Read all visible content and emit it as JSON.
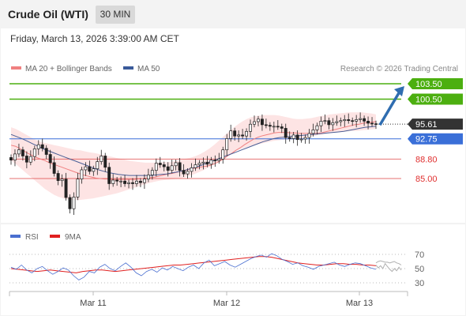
{
  "header": {
    "instrument": "Crude Oil (WTI)",
    "timeframe": "30 MIN",
    "timestamp": "Friday, March 13, 2026 3:39:00 AM CET"
  },
  "chart_data": [
    {
      "type": "candlestick",
      "legend": [
        {
          "label": "MA 20 + Bollinger Bands",
          "color": "#f08080"
        },
        {
          "label": "MA 50",
          "color": "#3a5a9a"
        }
      ],
      "credit": "Research © 2026 Trading Central",
      "last_price": "95.61",
      "levels": [
        {
          "label": "103.50",
          "value": 103.5,
          "role": "resistance",
          "color": "#4caf10"
        },
        {
          "label": "100.50",
          "value": 100.5,
          "role": "resistance",
          "color": "#4caf10"
        },
        {
          "label": "92.75",
          "value": 92.75,
          "role": "pivot",
          "color": "#3a6fd8"
        },
        {
          "label": "88.80",
          "value": 88.8,
          "role": "support",
          "color": "#e05050"
        },
        {
          "label": "85.00",
          "value": 85.0,
          "role": "support",
          "color": "#e05050"
        }
      ],
      "projection": {
        "from_value": 95.6,
        "to_value": 103.5,
        "direction": "up",
        "color": "#2f6db0"
      },
      "x_tick_labels": [
        "Mar 11",
        "Mar 12",
        "Mar 13"
      ],
      "close": [
        88.6,
        89.8,
        90.6,
        89.4,
        88.2,
        89.3,
        90.8,
        91.6,
        90.9,
        89.7,
        88.1,
        86.0,
        84.6,
        84.9,
        81.3,
        79.1,
        81.4,
        84.9,
        86.7,
        87.3,
        86.4,
        86.9,
        88.3,
        89.4,
        87.2,
        84.0,
        84.7,
        84.5,
        84.5,
        84.0,
        84.2,
        84.0,
        84.5,
        84.2,
        84.9,
        85.7,
        86.6,
        88.0,
        87.7,
        87.3,
        86.6,
        87.5,
        88.1,
        86.6,
        85.9,
        86.4,
        87.1,
        87.7,
        88.0,
        88.2,
        87.8,
        88.6,
        88.5,
        88.8,
        90.6,
        92.8,
        94.3,
        93.3,
        93.5,
        93.3,
        94.2,
        95.6,
        96.1,
        96.6,
        95.5,
        95.4,
        95.2,
        95.2,
        95.1,
        94.8,
        93.0,
        92.8,
        93.5,
        92.6,
        92.7,
        93.0,
        93.8,
        94.5,
        95.3,
        96.2,
        96.3,
        95.5,
        95.9,
        96.1,
        96.3,
        96.5,
        96.3,
        96.2,
        96.5,
        96.7,
        96.2,
        95.8,
        95.7,
        95.6
      ],
      "ma20": [
        91.5,
        91.3,
        90.9,
        90.4,
        89.9,
        89.5,
        89.1,
        88.8,
        88.5,
        88.1,
        87.8,
        87.5,
        87.2,
        86.9,
        86.6,
        86.3,
        86.0,
        85.7,
        85.5,
        85.3,
        85.1,
        85.0,
        84.9,
        84.9,
        84.8,
        84.8,
        84.8,
        84.8,
        84.8,
        84.8,
        84.9,
        85.0,
        85.1,
        85.2,
        85.3,
        85.5,
        85.7,
        85.9,
        86.0,
        86.2,
        86.4,
        86.6,
        86.8,
        87.0,
        87.1,
        87.3,
        87.4,
        87.6,
        87.9,
        88.3,
        88.8,
        89.4,
        89.9,
        90.5,
        91.0,
        91.6,
        92.1,
        92.6,
        93.0,
        93.3,
        93.5,
        93.7,
        93.9,
        94.0,
        94.0,
        94.0,
        93.9,
        93.9,
        93.8,
        93.8,
        93.8,
        93.8,
        93.8,
        93.9,
        94.1,
        94.3,
        94.5,
        94.7,
        94.9,
        95.1,
        95.3,
        95.5,
        95.6,
        95.8,
        95.9,
        96.0,
        96.1
      ],
      "upper_band": [
        95.0,
        94.7,
        94.2,
        93.7,
        93.2,
        92.7,
        92.3,
        92.0,
        91.8,
        91.6,
        91.4,
        91.2,
        91.0,
        90.8,
        90.6,
        90.5,
        90.3,
        90.1,
        90.0,
        89.8,
        89.6,
        89.4,
        89.2,
        89.0,
        88.8,
        88.6,
        88.4,
        88.3,
        88.2,
        88.1,
        88.1,
        88.1,
        88.1,
        88.2,
        88.2,
        88.3,
        88.5,
        88.7,
        88.9,
        89.1,
        89.4,
        89.8,
        90.3,
        90.9,
        91.6,
        92.4,
        93.2,
        94.0,
        94.8,
        95.5,
        96.1,
        96.6,
        97.0,
        97.2,
        97.3,
        97.4,
        97.4,
        97.4,
        97.3,
        97.1,
        96.9,
        96.7,
        96.6,
        96.6,
        96.7,
        96.8,
        97.0,
        97.2,
        97.3,
        97.5,
        97.6,
        97.7,
        97.8,
        97.9,
        97.9,
        97.9,
        97.9,
        97.8,
        97.7,
        97.5
      ],
      "lower_band": [
        88.5,
        87.8,
        87.0,
        86.2,
        85.4,
        84.6,
        83.8,
        83.0,
        82.4,
        81.8,
        81.4,
        81.1,
        80.9,
        80.8,
        80.8,
        80.9,
        81.0,
        81.1,
        81.3,
        81.5,
        81.7,
        81.9,
        82.1,
        82.4,
        82.7,
        83.0,
        83.3,
        83.6,
        83.9,
        84.2,
        84.4,
        84.6,
        84.7,
        84.8,
        84.9,
        85.0,
        85.2,
        85.5,
        85.8,
        86.2,
        86.6,
        87.1,
        87.6,
        88.2,
        88.8,
        89.4,
        90.0,
        90.5,
        90.8,
        91.1,
        91.4,
        91.6,
        91.8,
        92.0,
        92.2,
        92.4,
        92.5,
        92.6,
        92.6,
        92.6,
        92.7,
        92.9,
        93.1,
        93.3,
        93.5,
        93.6,
        93.8,
        93.9,
        94.0,
        94.1,
        94.2,
        94.3,
        94.3,
        94.4,
        94.5,
        94.6,
        94.7
      ],
      "ma50": [
        93.6,
        93.2,
        92.8,
        92.3,
        91.8,
        91.3,
        90.8,
        90.4,
        90.0,
        89.6,
        89.2,
        88.8,
        88.4,
        88.0,
        87.6,
        87.2,
        86.8,
        86.5,
        86.2,
        86.0,
        85.8,
        85.7,
        85.6,
        85.6,
        85.6,
        85.6,
        85.6,
        85.7,
        85.8,
        85.9,
        86.1,
        86.3,
        86.5,
        86.8,
        87.1,
        87.4,
        87.8,
        88.2,
        88.6,
        89.0,
        89.4,
        89.8,
        90.2,
        90.6,
        91.0,
        91.4,
        91.8,
        92.2,
        92.5,
        92.8,
        93.0,
        93.1,
        93.2,
        93.3,
        93.4,
        93.5,
        93.6,
        93.7,
        93.8,
        93.9,
        94.0,
        94.1,
        94.2,
        94.4,
        94.6,
        94.8,
        95.0,
        95.1,
        95.2
      ],
      "rsi_panel": {
        "legend": [
          {
            "label": "RSI",
            "color": "#4a6fd0"
          },
          {
            "label": "9MA",
            "color": "#e02020"
          }
        ],
        "y_tick_labels": [
          "70",
          "50",
          "30"
        ],
        "ylim": [
          20,
          80
        ],
        "rsi": [
          52,
          49,
          55,
          48,
          44,
          50,
          53,
          47,
          42,
          46,
          51,
          48,
          40,
          34,
          38,
          46,
          44,
          52,
          56,
          50,
          47,
          53,
          58,
          52,
          44,
          40,
          46,
          49,
          45,
          51,
          48,
          53,
          50,
          47,
          52,
          55,
          50,
          58,
          62,
          54,
          57,
          60,
          55,
          52,
          56,
          60,
          64,
          67,
          69,
          66,
          71,
          68,
          63,
          60,
          56,
          58,
          54,
          52,
          49,
          53,
          55,
          57,
          59,
          55,
          53,
          56,
          58,
          57,
          54,
          51,
          49
        ],
        "ma9": [
          50,
          49,
          48,
          47,
          46,
          47,
          48,
          47,
          46,
          45,
          44,
          46,
          47,
          48,
          48,
          47,
          46,
          47,
          48,
          49,
          50,
          51,
          52,
          53,
          54,
          55,
          55,
          56,
          57,
          58,
          59,
          60,
          61,
          62,
          63,
          64,
          65,
          66,
          67,
          67,
          66,
          64,
          62,
          60,
          58,
          57,
          56,
          55,
          55,
          56,
          57,
          57,
          56,
          56,
          55,
          55,
          54
        ],
        "rsi_tail": [
          55,
          51,
          54,
          50,
          57,
          53,
          49,
          46,
          50,
          47,
          52,
          48
        ],
        "ma9_tail": [
          58,
          60,
          61,
          60,
          59,
          59,
          58,
          59,
          60,
          58,
          57,
          55
        ]
      }
    }
  ]
}
